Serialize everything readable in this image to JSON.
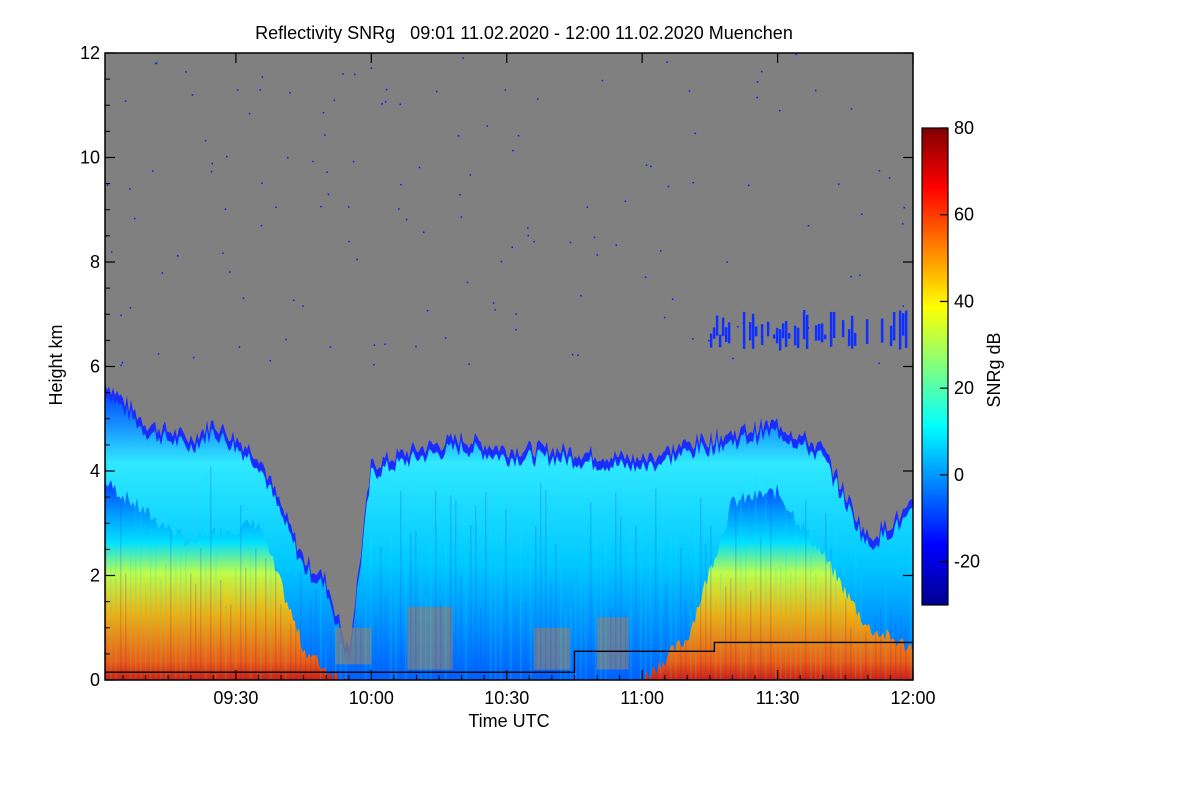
{
  "chart_data": {
    "type": "heatmap",
    "title": "Reflectivity SNRg   09:01 11.02.2020 - 12:00 11.02.2020 Muenchen",
    "xlabel": "Time UTC",
    "ylabel": "Height km",
    "x_ticks": [
      "09:30",
      "10:00",
      "10:30",
      "11:00",
      "11:30",
      "12:00"
    ],
    "y_ticks": [
      "0",
      "2",
      "4",
      "6",
      "8",
      "10",
      "12"
    ],
    "x_range": [
      "09:01",
      "12:00"
    ],
    "ylim": [
      0,
      12
    ],
    "background_color": "#808080",
    "colorbar": {
      "label": "SNRg dB",
      "range": [
        -30,
        80
      ],
      "ticks": [
        "-20",
        "0",
        "20",
        "40",
        "60",
        "80"
      ],
      "colormap": [
        "#00008f",
        "#0000ff",
        "#0080ff",
        "#00ffff",
        "#80ff80",
        "#ffff00",
        "#ff8000",
        "#ff0000",
        "#800000"
      ]
    },
    "series": [
      {
        "points": [
          {
            "x": "09:01",
            "y": 0.15
          },
          {
            "x": "10:45",
            "y": 0.15
          },
          {
            "x": "10:45",
            "y": 0.55
          },
          {
            "x": "11:16",
            "y": 0.55
          },
          {
            "x": "11:16",
            "y": 0.72
          },
          {
            "x": "12:00",
            "y": 0.72
          }
        ]
      }
    ],
    "echo_top_estimate_km": [
      {
        "x": "09:01",
        "top": 5.6,
        "core": 3.8
      },
      {
        "x": "09:10",
        "top": 4.8,
        "core": 3.2
      },
      {
        "x": "09:20",
        "top": 4.5,
        "core": 2.6
      },
      {
        "x": "09:25",
        "top": 4.8,
        "core": 2.8
      },
      {
        "x": "09:35",
        "top": 4.2,
        "core": 3.0
      },
      {
        "x": "09:40",
        "top": 3.2,
        "core": 1.8
      },
      {
        "x": "09:45",
        "top": 2.2,
        "core": 0.6
      },
      {
        "x": "09:50",
        "top": 1.8,
        "core": 0.2
      },
      {
        "x": "09:55",
        "top": 0.4,
        "core": 0.0
      },
      {
        "x": "10:00",
        "top": 4.0,
        "core": 0.0
      },
      {
        "x": "10:10",
        "top": 4.3,
        "core": 0.0
      },
      {
        "x": "10:20",
        "top": 4.5,
        "core": 0.0
      },
      {
        "x": "10:30",
        "top": 4.3,
        "core": 0.0
      },
      {
        "x": "10:40",
        "top": 4.3,
        "core": 0.0
      },
      {
        "x": "10:50",
        "top": 4.2,
        "core": 0.0
      },
      {
        "x": "11:00",
        "top": 4.1,
        "core": 0.0
      },
      {
        "x": "11:10",
        "top": 4.4,
        "core": 0.8
      },
      {
        "x": "11:20",
        "top": 4.6,
        "core": 3.4
      },
      {
        "x": "11:30",
        "top": 4.8,
        "core": 3.6
      },
      {
        "x": "11:40",
        "top": 4.3,
        "core": 2.4
      },
      {
        "x": "11:50",
        "top": 2.6,
        "core": 1.0
      },
      {
        "x": "12:00",
        "top": 3.2,
        "core": 0.6
      }
    ],
    "upper_layer_estimate_km": {
      "x_start": "11:15",
      "x_end": "12:00",
      "bottom": 6.3,
      "top": 7.1
    }
  }
}
